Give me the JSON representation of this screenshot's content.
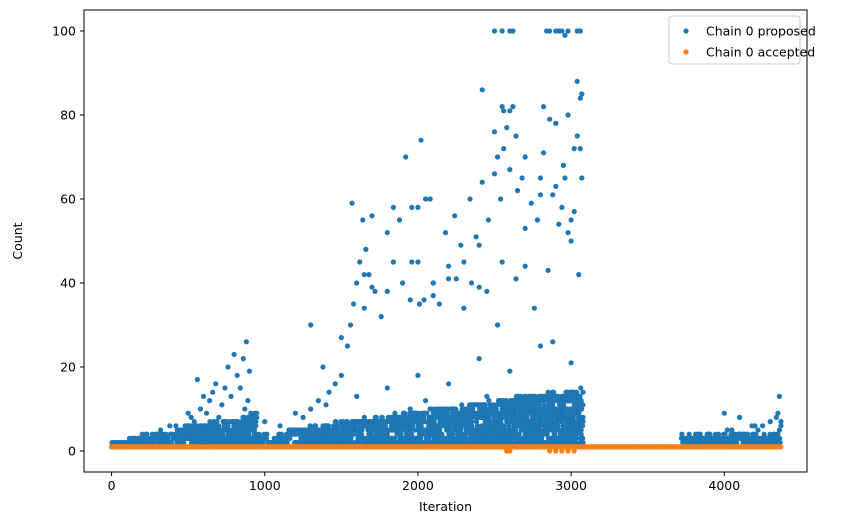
{
  "chart_data": {
    "type": "scatter",
    "title": "",
    "xlabel": "Iteration",
    "ylabel": "Count",
    "xlim": [
      -180,
      4540
    ],
    "ylim": [
      -5,
      105
    ],
    "xticks": [
      0,
      1000,
      2000,
      3000,
      4000
    ],
    "yticks": [
      0,
      20,
      40,
      60,
      80,
      100
    ],
    "xtick_labels": [
      "0",
      "1000",
      "2000",
      "3000",
      "4000"
    ],
    "ytick_labels": [
      "0",
      "20",
      "40",
      "60",
      "80",
      "100"
    ],
    "legend_position": "upper-right",
    "grid": false,
    "series": [
      {
        "name": "Chain 0 proposed",
        "color": "#1f77b4",
        "marker": "circle",
        "x": [
          100,
          150,
          200,
          260,
          320,
          380,
          420,
          460,
          500,
          520,
          540,
          560,
          580,
          600,
          620,
          640,
          660,
          680,
          700,
          720,
          740,
          760,
          780,
          800,
          820,
          840,
          860,
          880,
          900,
          480,
          560,
          640,
          700,
          760,
          820,
          870,
          890,
          720,
          800,
          850,
          600,
          680,
          1000,
          1100,
          1200,
          1250,
          1300,
          1350,
          1380,
          1420,
          1460,
          1500,
          1540,
          1560,
          1580,
          1600,
          1620,
          1640,
          1660,
          1680,
          1700,
          1720,
          1760,
          1800,
          1840,
          1880,
          1920,
          1960,
          2000,
          2020,
          2040,
          2080,
          2100,
          2140,
          2180,
          2200,
          2240,
          2280,
          2300,
          2340,
          2380,
          2400,
          2420,
          2460,
          2500,
          2520,
          2540,
          2560,
          2580,
          2600,
          2620,
          2640,
          2680,
          2700,
          2740,
          2780,
          2800,
          2820,
          2860,
          2880,
          2900,
          2920,
          2940,
          2960,
          2980,
          3000,
          3020,
          3040,
          3060,
          3070,
          1300,
          1500,
          1650,
          1800,
          1950,
          2100,
          2250,
          2400,
          2550,
          2700,
          2850,
          3000,
          2500,
          2550,
          2600,
          2620,
          2840,
          2860,
          2900,
          2920,
          2940,
          2960,
          2980,
          3040,
          3060,
          2420,
          2560,
          2600,
          2820,
          2950,
          3040,
          3060,
          3070,
          2000,
          2050,
          1960,
          2500,
          2550,
          2650,
          2700,
          2800,
          2900,
          2980,
          3020,
          3050,
          1570,
          1650,
          1700,
          1840,
          1900,
          2010,
          2100,
          2200,
          2300,
          2350,
          2450,
          2520,
          2640,
          2760,
          2880,
          1200,
          1400,
          1600,
          1800,
          2000,
          2200,
          2400,
          2600,
          2800,
          3000,
          1150,
          1250,
          1350,
          1450,
          1550,
          1650,
          1750,
          1850,
          1950,
          2050,
          2150,
          2250,
          2350,
          2450,
          2550,
          2650,
          2750,
          2850,
          2950,
          3050,
          3740,
          3780,
          3820,
          3860,
          3900,
          3940,
          3980,
          4020,
          4060,
          4100,
          4140,
          4180,
          4220,
          4260,
          4300,
          4340,
          4360,
          4370,
          4000,
          4100,
          4200,
          4300,
          4350,
          4360,
          4370,
          3800,
          3900,
          4050,
          4150,
          4250
        ],
        "y": [
          2,
          3,
          4,
          3,
          5,
          6,
          6,
          5,
          9,
          8,
          7,
          17,
          10,
          13,
          9,
          12,
          14,
          16,
          8,
          11,
          15,
          20,
          13,
          23,
          18,
          15,
          22,
          26,
          19,
          4,
          3,
          5,
          6,
          4,
          7,
          10,
          12,
          2,
          3,
          5,
          2,
          3,
          7,
          6,
          5,
          8,
          10,
          12,
          20,
          14,
          16,
          18,
          25,
          30,
          35,
          40,
          45,
          55,
          48,
          42,
          56,
          38,
          32,
          52,
          45,
          55,
          70,
          45,
          58,
          74,
          36,
          60,
          40,
          35,
          52,
          41,
          56,
          49,
          45,
          60,
          51,
          49,
          86,
          55,
          66,
          70,
          60,
          72,
          77,
          67,
          82,
          75,
          65,
          53,
          59,
          55,
          65,
          82,
          79,
          61,
          63,
          54,
          58,
          65,
          52,
          55,
          57,
          75,
          72,
          85,
          30,
          27,
          34,
          38,
          36,
          40,
          41,
          39,
          45,
          44,
          43,
          50,
          100,
          100,
          100,
          100,
          100,
          100,
          100,
          100,
          100,
          99,
          100,
          100,
          100,
          64,
          81,
          81,
          71,
          68,
          88,
          84,
          65,
          45,
          60,
          58,
          76,
          82,
          62,
          70,
          61,
          78,
          80,
          72,
          42,
          59,
          42,
          39,
          58,
          40,
          35,
          37,
          44,
          34,
          40,
          38,
          30,
          41,
          34,
          26,
          9,
          11,
          13,
          15,
          18,
          16,
          22,
          19,
          25,
          21,
          3,
          4,
          4,
          6,
          6,
          8,
          7,
          9,
          10,
          12,
          8,
          9,
          11,
          13,
          10,
          12,
          10,
          14,
          12,
          10,
          2,
          2,
          3,
          2,
          4,
          3,
          2,
          5,
          4,
          3,
          2,
          6,
          5,
          4,
          3,
          8,
          5,
          6,
          9,
          8,
          6,
          7,
          9,
          13,
          7,
          3,
          4,
          5,
          4,
          6
        ]
      },
      {
        "name": "Chain 0 accepted",
        "color": "#ff7f0e",
        "marker": "circle",
        "x_range": [
          0,
          4370
        ],
        "y_value": 1,
        "x": [
          2580,
          2600,
          2860,
          2900,
          2940,
          2980,
          3020
        ],
        "y": [
          0,
          0,
          0,
          0,
          0,
          0,
          0
        ]
      }
    ]
  }
}
